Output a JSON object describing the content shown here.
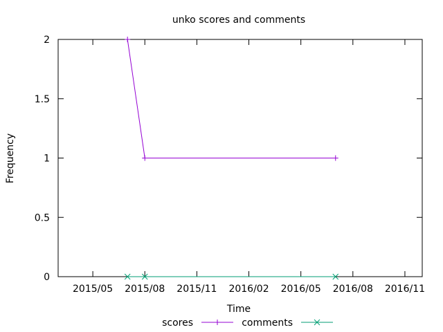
{
  "chart_data": {
    "type": "line",
    "title": "unko scores and comments",
    "xlabel": "Time",
    "ylabel": "Frequency",
    "x_ticks": [
      "2015/05",
      "2015/08",
      "2015/11",
      "2016/02",
      "2016/05",
      "2016/08",
      "2016/11"
    ],
    "y_ticks": [
      "0",
      "0.5",
      "1",
      "1.5",
      "2"
    ],
    "ylim": [
      0,
      2
    ],
    "xlim": [
      "2015-03-01",
      "2016-12-01"
    ],
    "grid": false,
    "legend_position": "bottom-center",
    "series": [
      {
        "name": "scores",
        "color": "#9400d3",
        "marker": "plus",
        "points": [
          {
            "x": "2015-07-01",
            "y": 2
          },
          {
            "x": "2015-08-01",
            "y": 1
          },
          {
            "x": "2016-07-01",
            "y": 1
          }
        ]
      },
      {
        "name": "comments",
        "color": "#009e73",
        "marker": "cross",
        "points": [
          {
            "x": "2015-07-01",
            "y": 0
          },
          {
            "x": "2015-08-01",
            "y": 0
          },
          {
            "x": "2016-07-01",
            "y": 0
          }
        ]
      }
    ]
  }
}
